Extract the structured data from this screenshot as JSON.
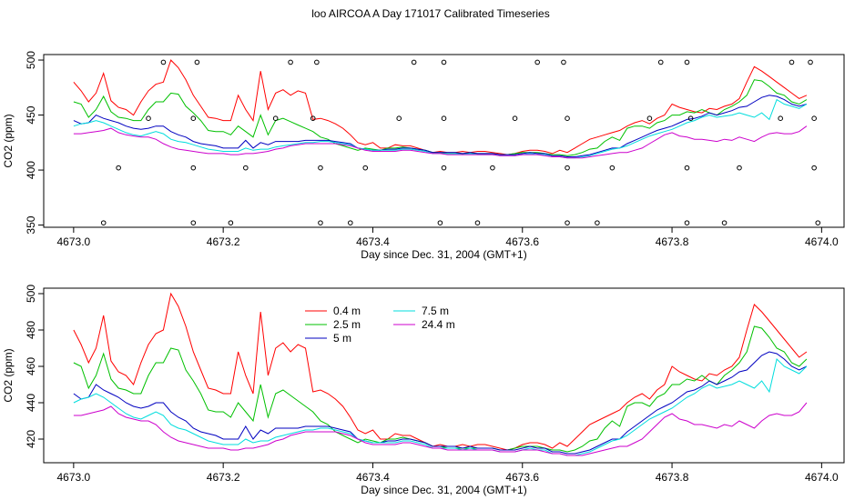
{
  "figure": {
    "title": "loo AIRCOA A  Day 171017  Calibrated Timeseries"
  },
  "colors": {
    "0.4 m": "#ff0000",
    "2.5 m": "#00c000",
    "5 m": "#0000c0",
    "7.5 m": "#00dddd",
    "24.4 m": "#cc00cc"
  },
  "chart_data": [
    {
      "type": "line",
      "xlabel": "Day since Dec. 31, 2004 (GMT+1)",
      "ylabel": "CO2 (ppm)",
      "xlim": [
        4672.96,
        4674.03
      ],
      "ylim": [
        348,
        505
      ],
      "xticks": [
        4673.0,
        4673.2,
        4673.4,
        4673.6,
        4673.8,
        4674.0
      ],
      "xtick_labels": [
        "4673.0",
        "4673.2",
        "4673.4",
        "4673.6",
        "4673.8",
        "4674.0"
      ],
      "yticks": [
        350,
        400,
        450,
        500
      ],
      "ytick_labels": [
        "350",
        "400",
        "450",
        "500"
      ],
      "legend": null,
      "series_ref": "shared",
      "markers": {
        "style": "open-circle",
        "x": [
          4673.04,
          4673.06,
          4673.1,
          4673.12,
          4673.16,
          4673.16,
          4673.16,
          4673.165,
          4673.21,
          4673.23,
          4673.27,
          4673.29,
          4673.32,
          4673.325,
          4673.33,
          4673.33,
          4673.37,
          4673.39,
          4673.435,
          4673.455,
          4673.49,
          4673.495,
          4673.495,
          4673.495,
          4673.54,
          4673.56,
          4673.59,
          4673.62,
          4673.655,
          4673.66,
          4673.66,
          4673.66,
          4673.7,
          4673.72,
          4673.77,
          4673.785,
          4673.82,
          4673.82,
          4673.825,
          4673.82,
          4673.87,
          4673.89,
          4673.945,
          4673.96,
          4673.985,
          4673.99,
          4673.99,
          4673.995
        ],
        "y": [
          352,
          402,
          447,
          498,
          352,
          402,
          447,
          498,
          352,
          402,
          447,
          498,
          447,
          498,
          352,
          402,
          352,
          402,
          447,
          498,
          352,
          402,
          447,
          498,
          352,
          402,
          447,
          498,
          498,
          447,
          402,
          352,
          352,
          402,
          447,
          498,
          352,
          402,
          447,
          498,
          352,
          402,
          447,
          498,
          498,
          447,
          402,
          352
        ]
      }
    },
    {
      "type": "line",
      "xlabel": "Day since Dec. 31, 2004 (GMT+1)",
      "ylabel": "CO2 (ppm)",
      "xlim": [
        4672.96,
        4674.03
      ],
      "ylim": [
        407,
        503
      ],
      "xticks": [
        4673.0,
        4673.2,
        4673.4,
        4673.6,
        4673.8,
        4674.0
      ],
      "xtick_labels": [
        "4673.0",
        "4673.2",
        "4673.4",
        "4673.6",
        "4673.8",
        "4674.0"
      ],
      "yticks": [
        420,
        440,
        460,
        480,
        500
      ],
      "ytick_labels": [
        "420",
        "440",
        "460",
        "480",
        "500"
      ],
      "legend": {
        "placement": "top-left",
        "entries": [
          {
            "name": "0.4 m",
            "color": "#ff0000"
          },
          {
            "name": "2.5 m",
            "color": "#00c000"
          },
          {
            "name": "5 m",
            "color": "#0000c0"
          },
          {
            "name": "7.5 m",
            "color": "#00dddd"
          },
          {
            "name": "24.4 m",
            "color": "#cc00cc"
          }
        ]
      },
      "series_ref": "shared"
    }
  ],
  "shared_series": {
    "x": [
      4673.0,
      4673.01,
      4673.02,
      4673.03,
      4673.04,
      4673.05,
      4673.06,
      4673.07,
      4673.08,
      4673.09,
      4673.1,
      4673.11,
      4673.12,
      4673.13,
      4673.14,
      4673.15,
      4673.16,
      4673.17,
      4673.18,
      4673.19,
      4673.2,
      4673.21,
      4673.22,
      4673.23,
      4673.24,
      4673.25,
      4673.26,
      4673.27,
      4673.28,
      4673.29,
      4673.3,
      4673.31,
      4673.32,
      4673.33,
      4673.34,
      4673.35,
      4673.36,
      4673.37,
      4673.38,
      4673.39,
      4673.4,
      4673.41,
      4673.42,
      4673.43,
      4673.44,
      4673.45,
      4673.46,
      4673.47,
      4673.48,
      4673.49,
      4673.5,
      4673.51,
      4673.52,
      4673.53,
      4673.54,
      4673.55,
      4673.56,
      4673.57,
      4673.58,
      4673.59,
      4673.6,
      4673.61,
      4673.62,
      4673.63,
      4673.64,
      4673.65,
      4673.66,
      4673.67,
      4673.68,
      4673.69,
      4673.7,
      4673.71,
      4673.72,
      4673.73,
      4673.74,
      4673.75,
      4673.76,
      4673.77,
      4673.78,
      4673.79,
      4673.8,
      4673.81,
      4673.82,
      4673.83,
      4673.84,
      4673.85,
      4673.86,
      4673.87,
      4673.88,
      4673.89,
      4673.9,
      4673.91,
      4673.92,
      4673.93,
      4673.94,
      4673.95,
      4673.96,
      4673.97,
      4673.98
    ],
    "series": [
      {
        "name": "0.4 m",
        "color": "#ff0000",
        "values": [
          480,
          472,
          462,
          470,
          488,
          463,
          457,
          455,
          450,
          462,
          472,
          478,
          480,
          500,
          493,
          482,
          468,
          458,
          448,
          447,
          445,
          445,
          468,
          455,
          445,
          490,
          455,
          470,
          473,
          468,
          472,
          470,
          446,
          447,
          445,
          442,
          438,
          432,
          425,
          423,
          425,
          420,
          420,
          423,
          422,
          422,
          420,
          418,
          416,
          417,
          416,
          416,
          417,
          416,
          417,
          417,
          416,
          415,
          414,
          415,
          417,
          418,
          418,
          417,
          415,
          418,
          416,
          420,
          424,
          428,
          430,
          432,
          434,
          436,
          440,
          443,
          445,
          442,
          447,
          450,
          460,
          457,
          455,
          453,
          452,
          456,
          455,
          458,
          460,
          465,
          480,
          494,
          490,
          485,
          480,
          475,
          470,
          465,
          468
        ]
      },
      {
        "name": "2.5 m",
        "color": "#00c000",
        "values": [
          462,
          460,
          448,
          455,
          467,
          453,
          448,
          447,
          445,
          445,
          455,
          462,
          462,
          470,
          469,
          458,
          452,
          445,
          436,
          435,
          435,
          432,
          440,
          435,
          430,
          450,
          432,
          445,
          447,
          444,
          441,
          438,
          435,
          430,
          428,
          424,
          422,
          420,
          418,
          420,
          419,
          418,
          420,
          420,
          421,
          420,
          419,
          418,
          416,
          416,
          415,
          415,
          415,
          415,
          415,
          415,
          415,
          414,
          414,
          415,
          416,
          416,
          416,
          415,
          414,
          414,
          413,
          414,
          416,
          419,
          420,
          426,
          430,
          427,
          438,
          440,
          440,
          438,
          443,
          445,
          450,
          450,
          453,
          452,
          455,
          452,
          450,
          455,
          458,
          462,
          468,
          482,
          481,
          476,
          470,
          468,
          462,
          460,
          464
        ]
      },
      {
        "name": "5 m",
        "color": "#0000c0",
        "values": [
          445,
          442,
          443,
          450,
          447,
          445,
          443,
          440,
          438,
          437,
          438,
          440,
          440,
          435,
          432,
          430,
          426,
          424,
          423,
          422,
          420,
          420,
          420,
          427,
          420,
          425,
          423,
          426,
          426,
          426,
          426,
          427,
          427,
          427,
          427,
          426,
          425,
          424,
          420,
          419,
          418,
          418,
          419,
          419,
          420,
          420,
          419,
          418,
          416,
          416,
          416,
          416,
          415,
          416,
          415,
          415,
          415,
          414,
          414,
          414,
          415,
          416,
          415,
          415,
          413,
          413,
          412,
          412,
          413,
          414,
          416,
          418,
          420,
          420,
          424,
          427,
          430,
          433,
          436,
          438,
          440,
          443,
          446,
          447,
          449,
          452,
          450,
          452,
          454,
          457,
          458,
          462,
          466,
          468,
          467,
          464,
          460,
          458,
          460
        ]
      },
      {
        "name": "7.5 m",
        "color": "#00dddd",
        "values": [
          440,
          442,
          443,
          445,
          443,
          440,
          437,
          434,
          432,
          431,
          433,
          435,
          433,
          428,
          426,
          425,
          423,
          421,
          419,
          418,
          417,
          417,
          417,
          420,
          418,
          419,
          419,
          421,
          422,
          423,
          424,
          425,
          425,
          426,
          426,
          425,
          424,
          423,
          420,
          419,
          418,
          418,
          418,
          418,
          419,
          419,
          418,
          417,
          415,
          415,
          415,
          415,
          414,
          415,
          414,
          414,
          414,
          413,
          413,
          413,
          414,
          415,
          414,
          414,
          412,
          412,
          411,
          411,
          412,
          413,
          415,
          417,
          419,
          420,
          422,
          425,
          428,
          431,
          433,
          435,
          437,
          440,
          443,
          445,
          448,
          450,
          448,
          449,
          450,
          452,
          450,
          448,
          452,
          446,
          464,
          460,
          458,
          456,
          460
        ]
      },
      {
        "name": "24.4 m",
        "color": "#cc00cc",
        "values": [
          433,
          433,
          434,
          435,
          436,
          438,
          434,
          432,
          431,
          430,
          430,
          428,
          424,
          421,
          419,
          418,
          417,
          416,
          415,
          415,
          415,
          414,
          414,
          415,
          415,
          416,
          417,
          419,
          420,
          422,
          423,
          424,
          424,
          424,
          424,
          424,
          423,
          422,
          420,
          418,
          417,
          417,
          417,
          417,
          418,
          418,
          417,
          416,
          415,
          415,
          414,
          414,
          414,
          414,
          414,
          414,
          414,
          413,
          413,
          413,
          414,
          414,
          414,
          413,
          412,
          412,
          411,
          411,
          411,
          412,
          413,
          414,
          415,
          416,
          416,
          418,
          420,
          424,
          428,
          432,
          434,
          431,
          430,
          428,
          428,
          427,
          426,
          428,
          427,
          430,
          428,
          426,
          430,
          433,
          434,
          433,
          433,
          435,
          440
        ]
      }
    ]
  }
}
